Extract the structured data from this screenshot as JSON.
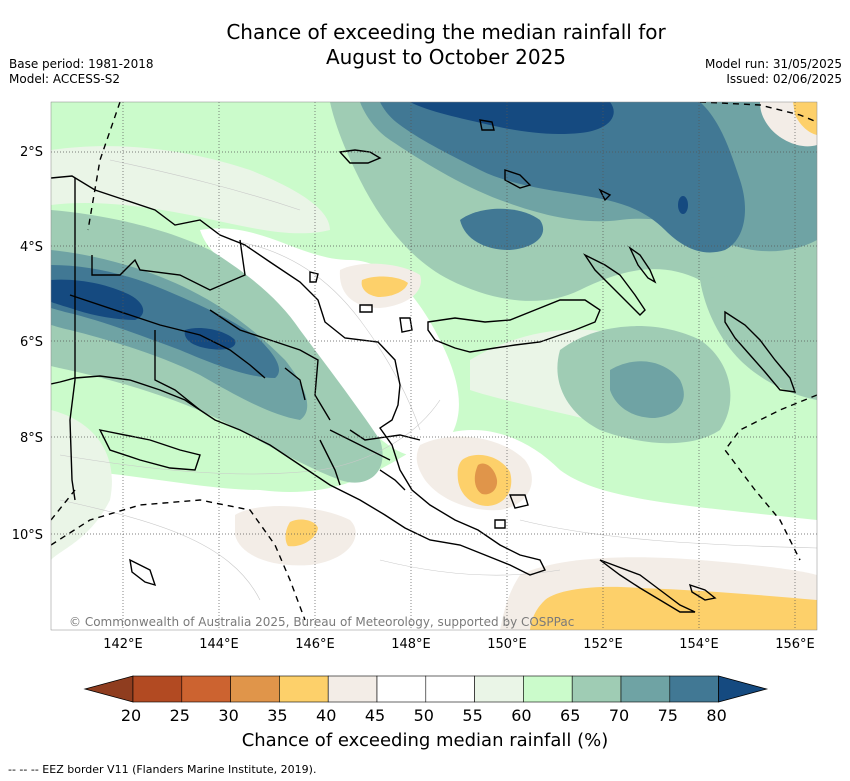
{
  "header": {
    "title_line1": "Chance of exceeding the median rainfall for",
    "title_line2": "August to October 2025",
    "base_period": "Base period: 1981-2018",
    "model": "Model: ACCESS-S2",
    "model_run": "Model run: 31/05/2025",
    "issued": "Issued: 02/06/2025"
  },
  "map": {
    "lat_labels": [
      "2°S",
      "4°S",
      "6°S",
      "8°S",
      "10°S"
    ],
    "lon_labels": [
      "142°E",
      "144°E",
      "146°E",
      "148°E",
      "150°E",
      "152°E",
      "154°E",
      "156°E"
    ],
    "copyright": "© Commonwealth of Australia 2025, Bureau of Meteorology, supported by COSPPac"
  },
  "colorbar": {
    "title": "Chance of exceeding median rainfall (%)",
    "ticks": [
      "20",
      "25",
      "30",
      "35",
      "40",
      "45",
      "50",
      "55",
      "60",
      "65",
      "70",
      "75",
      "80"
    ],
    "colors": [
      "#8f3d1f",
      "#b24a22",
      "#cc6330",
      "#e0954a",
      "#fdd06a",
      "#f3ede7",
      "#ffffff",
      "#ffffff",
      "#eaf5e7",
      "#cbfbcb",
      "#9fccb4",
      "#6fa3a4",
      "#417894",
      "#154a80"
    ]
  },
  "footnote": "--  --  -- EEZ border V11 (Flanders Marine Institute, 2019)."
}
